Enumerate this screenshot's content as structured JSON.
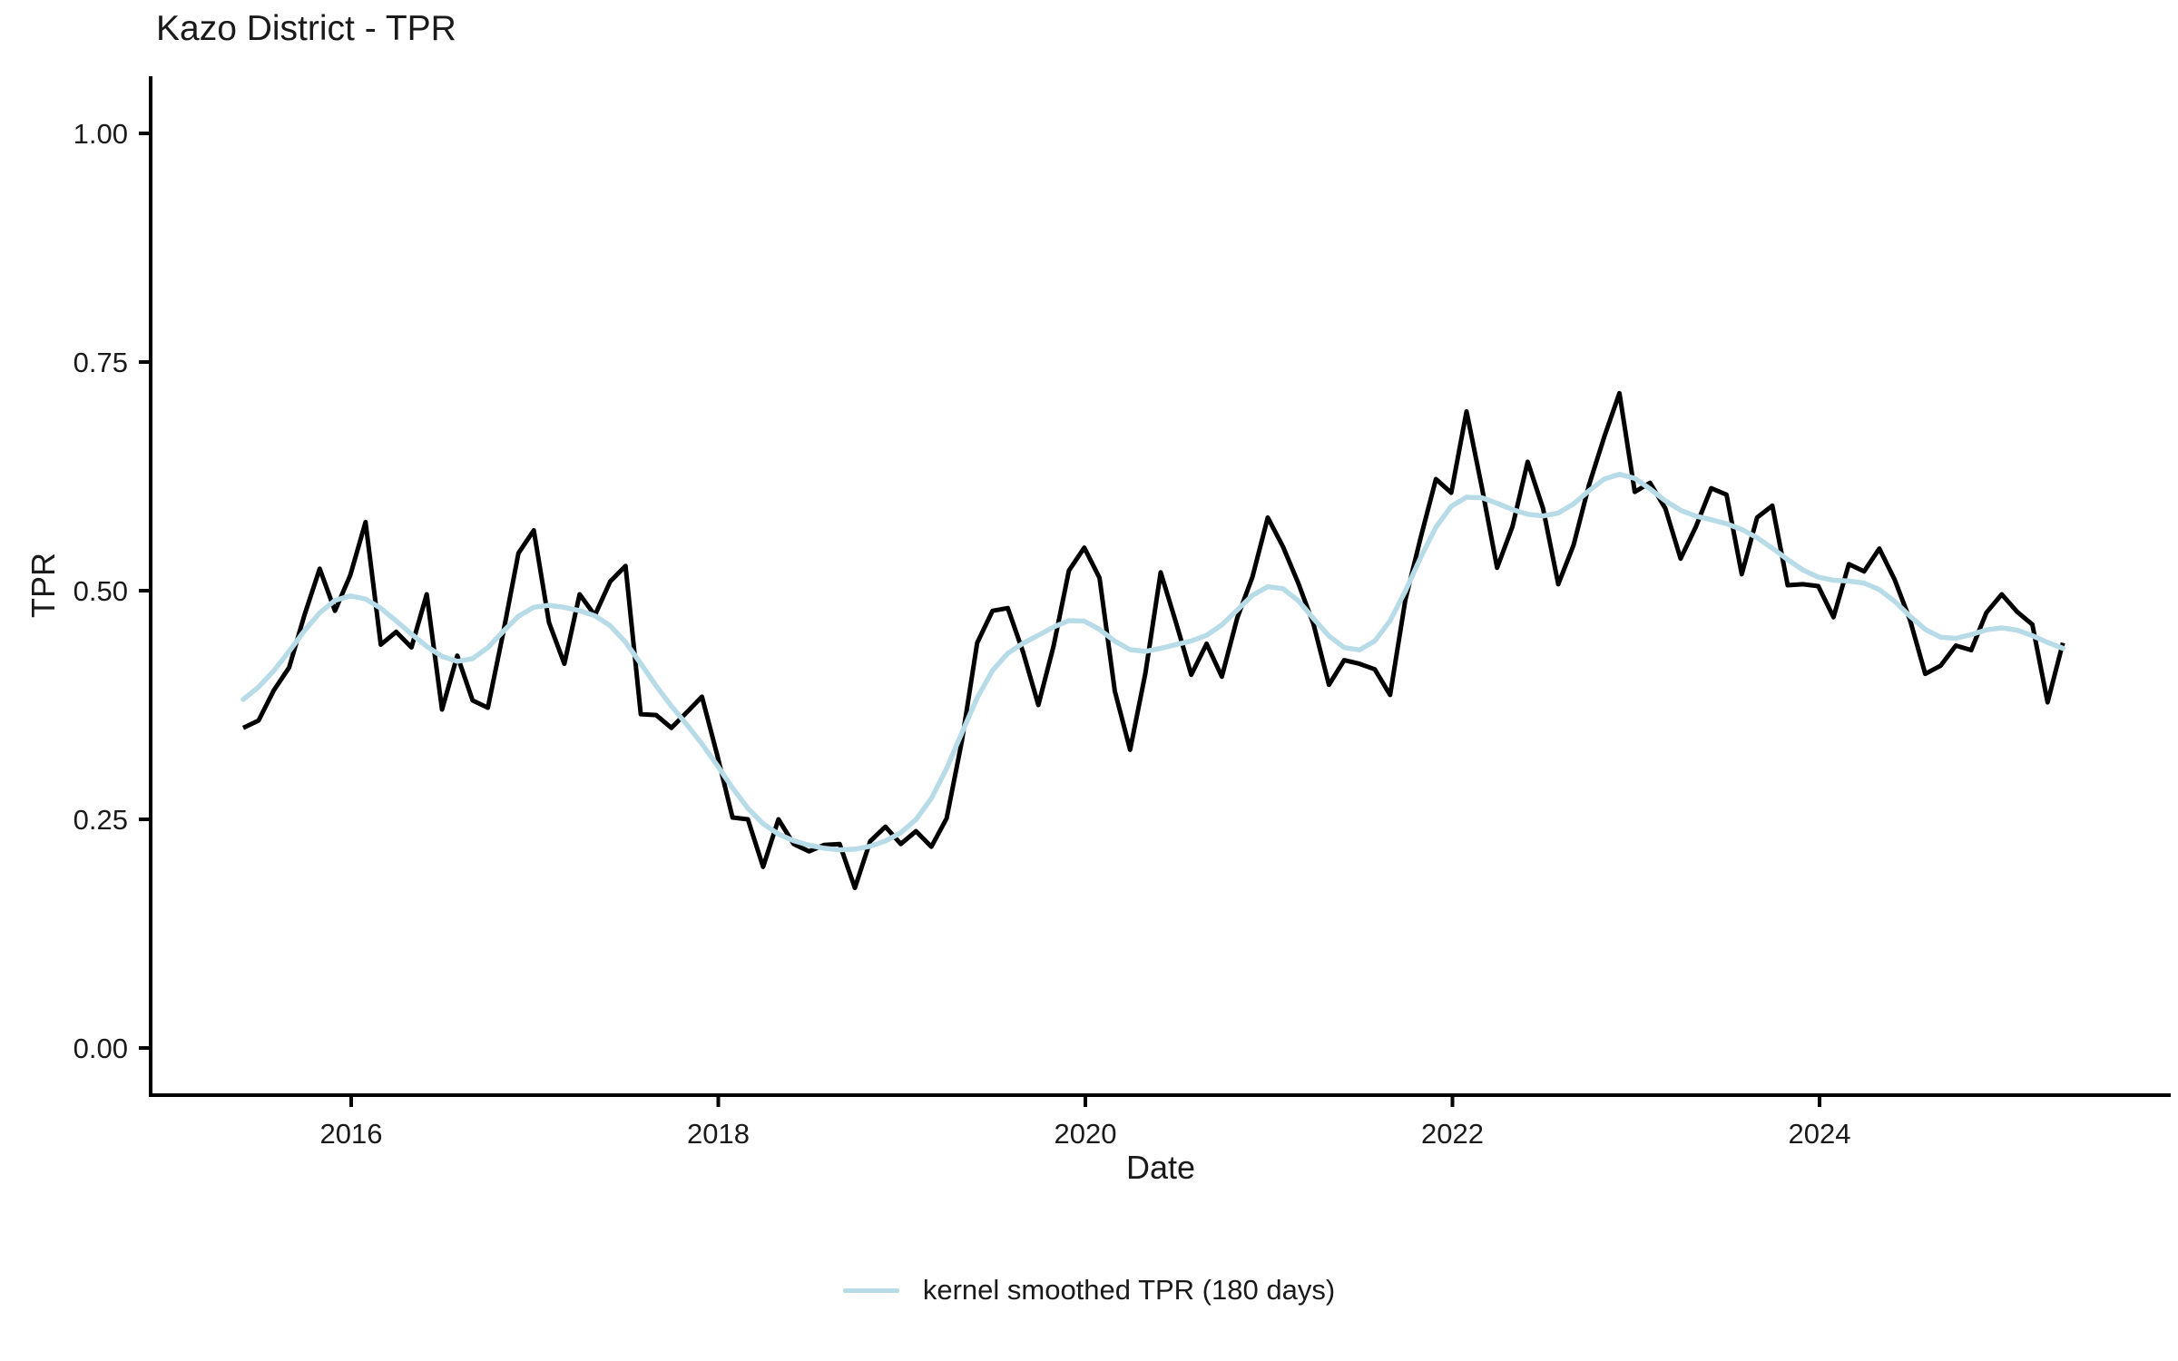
{
  "title": "Kazo District - TPR",
  "axes": {
    "y_label": "TPR",
    "x_label": "Date",
    "y_tick_labels": [
      "0.00",
      "0.25",
      "0.50",
      "0.75",
      "1.00"
    ],
    "x_tick_labels": [
      "2016",
      "2018",
      "2020",
      "2022",
      "2024"
    ]
  },
  "legend": {
    "label": "kernel smoothed TPR (180 days)"
  },
  "colors": {
    "raw_line": "#000000",
    "smoothed_line": "#b7dce8",
    "axis": "#000000",
    "text": "#1a1a1a",
    "background": "#ffffff"
  },
  "chart_data": {
    "type": "line",
    "title": "Kazo District - TPR",
    "xlabel": "Date",
    "ylabel": "TPR",
    "ylim": [
      0,
      1
    ],
    "grid": false,
    "legend_position": "bottom",
    "y_ticks": [
      0,
      0.25,
      0.5,
      0.75,
      1
    ],
    "x_tick_years": [
      2016,
      2018,
      2020,
      2022,
      2024
    ],
    "months": [
      "2015-06",
      "2015-07",
      "2015-08",
      "2015-09",
      "2015-10",
      "2015-11",
      "2015-12",
      "2016-01",
      "2016-02",
      "2016-03",
      "2016-04",
      "2016-05",
      "2016-06",
      "2016-07",
      "2016-08",
      "2016-09",
      "2016-10",
      "2016-11",
      "2016-12",
      "2017-01",
      "2017-02",
      "2017-03",
      "2017-04",
      "2017-05",
      "2017-06",
      "2017-07",
      "2017-08",
      "2017-09",
      "2017-10",
      "2017-11",
      "2017-12",
      "2018-01",
      "2018-02",
      "2018-03",
      "2018-04",
      "2018-05",
      "2018-06",
      "2018-07",
      "2018-08",
      "2018-09",
      "2018-10",
      "2018-11",
      "2018-12",
      "2019-01",
      "2019-02",
      "2019-03",
      "2019-04",
      "2019-05",
      "2019-06",
      "2019-07",
      "2019-08",
      "2019-09",
      "2019-10",
      "2019-11",
      "2019-12",
      "2020-01",
      "2020-02",
      "2020-03",
      "2020-04",
      "2020-05",
      "2020-06",
      "2020-07",
      "2020-08",
      "2020-09",
      "2020-10",
      "2020-11",
      "2020-12",
      "2021-01",
      "2021-02",
      "2021-03",
      "2021-04",
      "2021-05",
      "2021-06",
      "2021-07",
      "2021-08",
      "2021-09",
      "2021-10",
      "2021-11",
      "2021-12",
      "2022-01",
      "2022-02",
      "2022-03",
      "2022-04",
      "2022-05",
      "2022-06",
      "2022-07",
      "2022-08",
      "2022-09",
      "2022-10",
      "2022-11",
      "2022-12",
      "2023-01",
      "2023-02",
      "2023-03",
      "2023-04",
      "2023-05",
      "2023-06",
      "2023-07",
      "2023-08",
      "2023-09",
      "2023-10",
      "2023-11",
      "2023-12",
      "2024-01",
      "2024-02",
      "2024-03",
      "2024-04",
      "2024-05",
      "2024-06",
      "2024-07",
      "2024-08",
      "2024-09",
      "2024-10",
      "2024-11",
      "2024-12",
      "2025-01",
      "2025-02",
      "2025-03",
      "2025-04",
      "2025-05"
    ],
    "series": [
      {
        "name": "TPR (monthly)",
        "color": "#000000",
        "values": [
          0.35,
          0.358,
          0.391,
          0.416,
          0.473,
          0.524,
          0.478,
          0.517,
          0.575,
          0.441,
          0.455,
          0.438,
          0.496,
          0.37,
          0.429,
          0.38,
          0.372,
          0.454,
          0.541,
          0.566,
          0.465,
          0.42,
          0.496,
          0.473,
          0.51,
          0.527,
          0.365,
          0.364,
          0.35,
          0.367,
          0.384,
          0.32,
          0.252,
          0.25,
          0.198,
          0.25,
          0.223,
          0.215,
          0.222,
          0.223,
          0.175,
          0.226,
          0.242,
          0.223,
          0.237,
          0.22,
          0.251,
          0.336,
          0.443,
          0.478,
          0.481,
          0.433,
          0.375,
          0.44,
          0.522,
          0.547,
          0.514,
          0.39,
          0.326,
          0.41,
          0.52,
          0.465,
          0.408,
          0.442,
          0.406,
          0.47,
          0.515,
          0.58,
          0.548,
          0.508,
          0.463,
          0.397,
          0.424,
          0.42,
          0.414,
          0.386,
          0.49,
          0.558,
          0.622,
          0.607,
          0.696,
          0.613,
          0.525,
          0.57,
          0.641,
          0.59,
          0.507,
          0.55,
          0.615,
          0.668,
          0.716,
          0.608,
          0.618,
          0.59,
          0.535,
          0.57,
          0.612,
          0.605,
          0.518,
          0.58,
          0.593,
          0.506,
          0.507,
          0.505,
          0.471,
          0.529,
          0.521,
          0.546,
          0.512,
          0.468,
          0.409,
          0.418,
          0.44,
          0.435,
          0.476,
          0.496,
          0.477,
          0.463,
          0.378,
          0.443
        ]
      },
      {
        "name": "kernel smoothed TPR (180 days)",
        "color": "#b7dce8",
        "derived_from": "TPR (monthly)",
        "smoothing": {
          "kernel": "gaussian",
          "window_days": 180,
          "sigma_months": 2.2
        }
      }
    ]
  }
}
